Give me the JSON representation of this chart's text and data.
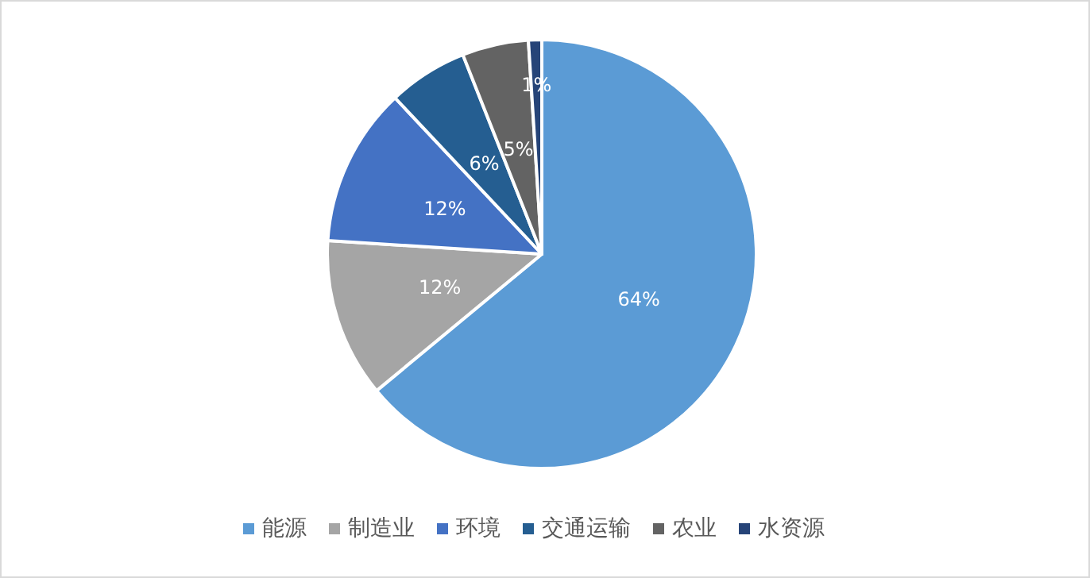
{
  "chart_data": {
    "type": "pie",
    "categories": [
      "能源",
      "制造业",
      "环境",
      "交通运输",
      "农业",
      "水资源"
    ],
    "values": [
      64,
      12,
      12,
      6,
      5,
      1
    ],
    "colors": [
      "#5b9bd5",
      "#a5a5a5",
      "#4472c4",
      "#255e91",
      "#636363",
      "#264478"
    ],
    "value_labels": [
      "64%",
      "12%",
      "12%",
      "6%",
      "5%",
      "1%"
    ],
    "legend": "bottom"
  }
}
